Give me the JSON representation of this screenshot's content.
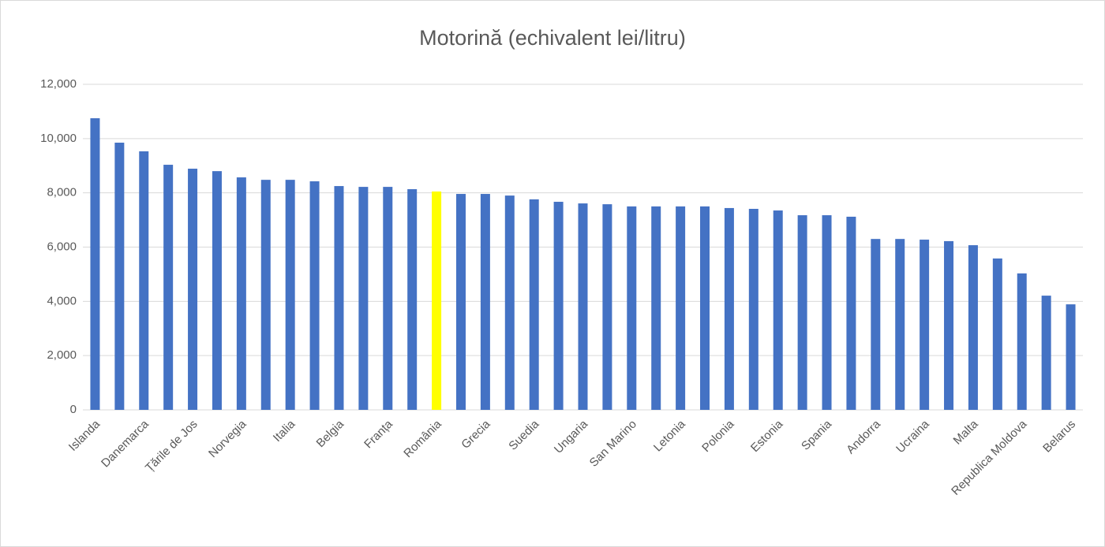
{
  "chart_data": {
    "type": "bar",
    "title": "Motorină (echivalent lei/litru)",
    "categories": [
      "Islanda",
      null,
      "Danemarca",
      null,
      "Țările de Jos",
      null,
      "Norvegia",
      null,
      "Italia",
      null,
      "Belgia",
      null,
      "Franța",
      null,
      "România",
      null,
      "Grecia",
      null,
      "Suedia",
      null,
      "Ungaria",
      null,
      "San Marino",
      null,
      "Letonia",
      null,
      "Polonia",
      null,
      "Estonia",
      null,
      "Spania",
      null,
      "Andorra",
      null,
      "Ucraina",
      null,
      "Malta",
      null,
      "Republica Moldova",
      null,
      "Belarus"
    ],
    "values": [
      10750,
      9850,
      9530,
      9035,
      8890,
      8800,
      8570,
      8480,
      8480,
      8425,
      8250,
      8220,
      8220,
      8135,
      8050,
      7960,
      7960,
      7900,
      7760,
      7670,
      7610,
      7580,
      7500,
      7500,
      7500,
      7500,
      7440,
      7410,
      7350,
      7175,
      7175,
      7120,
      6300,
      6300,
      6275,
      6220,
      6070,
      5580,
      5030,
      4210,
      3890
    ],
    "colors": [
      "#4472c4",
      "#4472c4",
      "#4472c4",
      "#4472c4",
      "#4472c4",
      "#4472c4",
      "#4472c4",
      "#4472c4",
      "#4472c4",
      "#4472c4",
      "#4472c4",
      "#4472c4",
      "#4472c4",
      "#4472c4",
      "#ffff00",
      "#4472c4",
      "#4472c4",
      "#4472c4",
      "#4472c4",
      "#4472c4",
      "#4472c4",
      "#4472c4",
      "#4472c4",
      "#4472c4",
      "#4472c4",
      "#4472c4",
      "#4472c4",
      "#4472c4",
      "#4472c4",
      "#4472c4",
      "#4472c4",
      "#4472c4",
      "#4472c4",
      "#4472c4",
      "#4472c4",
      "#4472c4",
      "#4472c4",
      "#4472c4",
      "#4472c4",
      "#4472c4",
      "#4472c4"
    ],
    "ylim": [
      0,
      12000
    ],
    "yticks": [
      0,
      {
        "value": 2000,
        "label": "2,000"
      },
      {
        "value": 4000,
        "label": "4,000"
      },
      {
        "value": 6000,
        "label": "6,000"
      },
      {
        "value": 8000,
        "label": "8,000"
      },
      {
        "value": 10000,
        "label": "10,000"
      },
      {
        "value": 12000,
        "label": "12,000"
      }
    ],
    "grid": true
  }
}
